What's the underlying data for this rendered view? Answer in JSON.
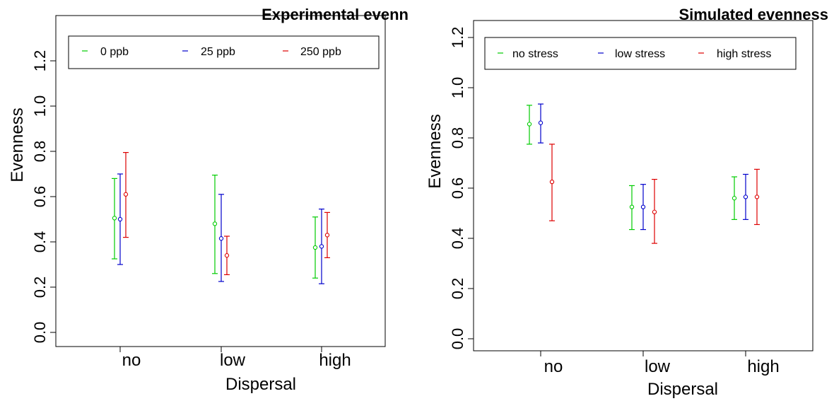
{
  "chart_data": [
    {
      "type": "scatter",
      "variant": "error-bars",
      "title": "Experimental evenn",
      "xlabel": "Dispersal",
      "ylabel": "Evenness",
      "categories": [
        "no",
        "low",
        "high"
      ],
      "ylim": [
        -0.05,
        1.3
      ],
      "yticks": [
        "0.0",
        "0.2",
        "0.4",
        "0.6",
        "0.8",
        "1.0",
        "1.2"
      ],
      "ytick_values": [
        0.0,
        0.2,
        0.4,
        0.6,
        0.8,
        1.0,
        1.2
      ],
      "legend_position": "top",
      "grid": false,
      "series": [
        {
          "name": "0 ppb",
          "color": "#00cc00",
          "mean": [
            0.505,
            0.48,
            0.375
          ],
          "lower": [
            0.325,
            0.26,
            0.24
          ],
          "upper": [
            0.68,
            0.695,
            0.51
          ]
        },
        {
          "name": "25 ppb",
          "color": "#0000cc",
          "mean": [
            0.5,
            0.415,
            0.38
          ],
          "lower": [
            0.3,
            0.225,
            0.215
          ],
          "upper": [
            0.7,
            0.61,
            0.545
          ]
        },
        {
          "name": "250 ppb",
          "color": "#dd0000",
          "mean": [
            0.61,
            0.34,
            0.43
          ],
          "lower": [
            0.42,
            0.255,
            0.33
          ],
          "upper": [
            0.795,
            0.425,
            0.53
          ]
        }
      ]
    },
    {
      "type": "scatter",
      "variant": "error-bars",
      "title": "Simulated evenness",
      "xlabel": "Dispersal",
      "ylabel": "Evenness",
      "categories": [
        "no",
        "low",
        "high"
      ],
      "ylim": [
        -0.05,
        1.3
      ],
      "yticks": [
        "0.0",
        "0.2",
        "0.4",
        "0.6",
        "0.8",
        "1.0",
        "1.2"
      ],
      "ytick_values": [
        0.0,
        0.2,
        0.4,
        0.6,
        0.8,
        1.0,
        1.2
      ],
      "legend_position": "top",
      "grid": false,
      "series": [
        {
          "name": "no stress",
          "color": "#00cc00",
          "mean": [
            0.855,
            0.525,
            0.56
          ],
          "lower": [
            0.775,
            0.435,
            0.475
          ],
          "upper": [
            0.93,
            0.61,
            0.645
          ]
        },
        {
          "name": "low stress",
          "color": "#0000cc",
          "mean": [
            0.86,
            0.525,
            0.565
          ],
          "lower": [
            0.78,
            0.435,
            0.475
          ],
          "upper": [
            0.935,
            0.615,
            0.655
          ]
        },
        {
          "name": "high stress",
          "color": "#dd0000",
          "mean": [
            0.625,
            0.505,
            0.565
          ],
          "lower": [
            0.47,
            0.38,
            0.455
          ],
          "upper": [
            0.775,
            0.635,
            0.675
          ]
        }
      ]
    }
  ]
}
